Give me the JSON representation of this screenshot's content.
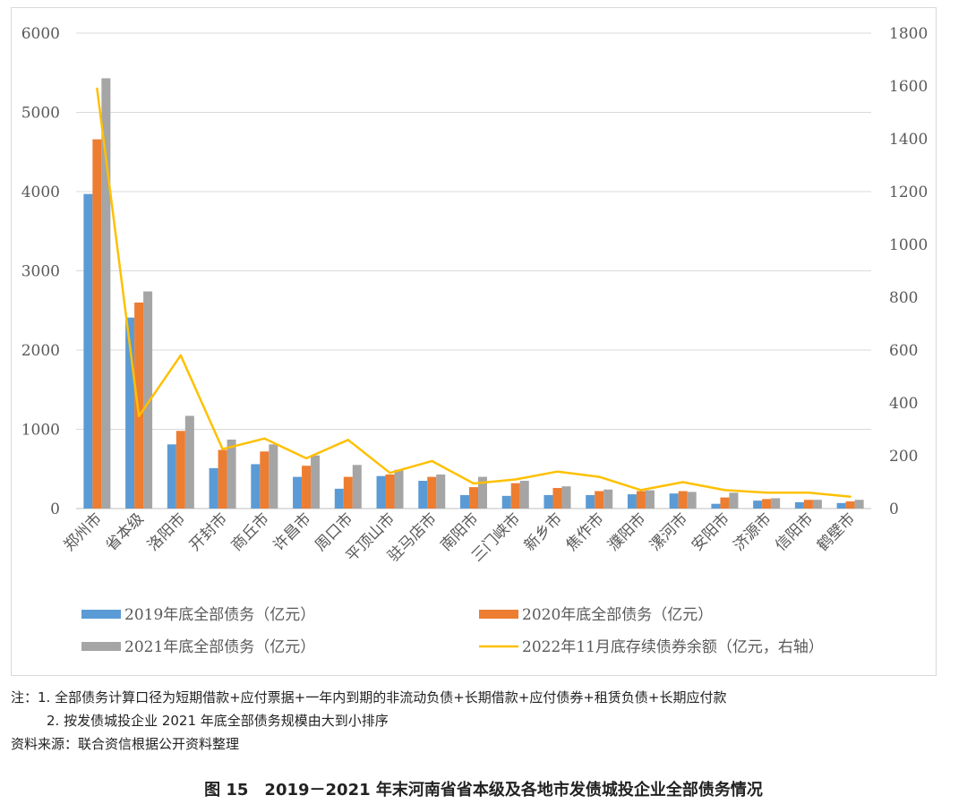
{
  "notes": {
    "line1": "注：1. 全部债务计算口径为短期借款+应付票据+一年内到期的非流动负债+长期借款+应付债券+租赁负债+长期应付款",
    "line2": "2. 按发债城投企业 2021 年底全部债务规模由大到小排序",
    "source": "资料来源：联合资信根据公开资料整理"
  },
  "caption": "图 15　2019－2021 年末河南省省本级及各地市发债城投企业全部债务情况",
  "chart_data": {
    "type": "bar",
    "categories": [
      "郑州市",
      "省本级",
      "洛阳市",
      "开封市",
      "商丘市",
      "许昌市",
      "周口市",
      "平顶山市",
      "驻马店市",
      "南阳市",
      "三门峡市",
      "新乡市",
      "焦作市",
      "濮阳市",
      "漯河市",
      "安阳市",
      "济源市",
      "信阳市",
      "鹤壁市"
    ],
    "series": [
      {
        "name": "2019年底全部债务（亿元）",
        "kind": "bar",
        "axis": "left",
        "color": "#5b9bd5",
        "values": [
          3970,
          2410,
          810,
          510,
          560,
          400,
          250,
          410,
          350,
          170,
          160,
          170,
          170,
          180,
          190,
          60,
          100,
          80,
          70
        ]
      },
      {
        "name": "2020年底全部债务（亿元）",
        "kind": "bar",
        "axis": "left",
        "color": "#ed7d31",
        "values": [
          4660,
          2600,
          980,
          740,
          720,
          540,
          400,
          430,
          400,
          270,
          320,
          260,
          220,
          220,
          220,
          140,
          120,
          110,
          90
        ]
      },
      {
        "name": "2021年底全部债务（亿元）",
        "kind": "bar",
        "axis": "left",
        "color": "#a5a5a5",
        "values": [
          5430,
          2740,
          1170,
          870,
          810,
          670,
          550,
          490,
          430,
          400,
          350,
          280,
          240,
          230,
          210,
          200,
          130,
          110,
          110
        ]
      },
      {
        "name": "2022年11月底存续债券余额（亿元，右轴）",
        "kind": "line",
        "axis": "right",
        "color": "#ffc000",
        "values": [
          1590,
          350,
          580,
          225,
          265,
          190,
          260,
          135,
          180,
          95,
          110,
          140,
          120,
          70,
          100,
          70,
          60,
          60,
          45
        ]
      }
    ],
    "y_left": {
      "min": 0,
      "max": 6000,
      "ticks": [
        "0",
        "1000",
        "2000",
        "3000",
        "4000",
        "5000",
        "6000"
      ]
    },
    "y_right": {
      "min": 0,
      "max": 1800,
      "ticks": [
        "0",
        "200",
        "400",
        "600",
        "800",
        "1000",
        "1200",
        "1400",
        "1600",
        "1800"
      ]
    },
    "grid": "horizontal",
    "legend_position": "bottom"
  }
}
